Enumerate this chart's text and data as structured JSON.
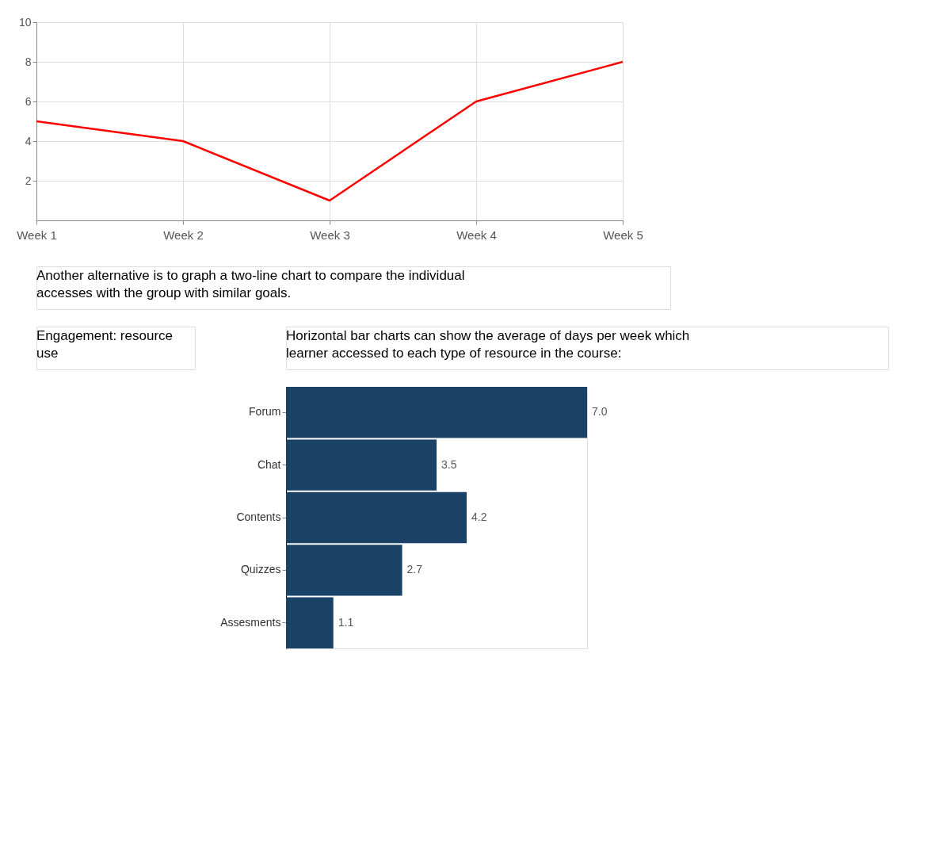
{
  "chart_data": [
    {
      "type": "line",
      "categories": [
        "Week 1",
        "Week 2",
        "Week 3",
        "Week 4",
        "Week 5"
      ],
      "series": [
        {
          "color": "#ff0000",
          "values": [
            5,
            4,
            1,
            6,
            8
          ]
        }
      ],
      "ylim": [
        0,
        10
      ],
      "yticks": [
        2,
        4,
        6,
        8,
        10
      ],
      "grid": true,
      "line_style": "solid",
      "annotations": [
        "Another alternative is to graph a two-line chart to compare the individual accesses with the group with similar goals."
      ]
    },
    {
      "type": "bar",
      "orientation": "horizontal",
      "title": "Horizontal bar charts can show the average of days per week which learner accessed to each type of resource in the course:",
      "categories": [
        "Forum",
        "Chat",
        "Contents",
        "Quizzes",
        "Assesments"
      ],
      "values": [
        7.0,
        3.5,
        4.2,
        2.7,
        1.1
      ],
      "color": "#1a4266",
      "value_labels": [
        "7.0",
        "3.5",
        "4.2",
        "2.7",
        "1.1"
      ],
      "annotations": [
        "Engagement: resource use"
      ]
    }
  ]
}
